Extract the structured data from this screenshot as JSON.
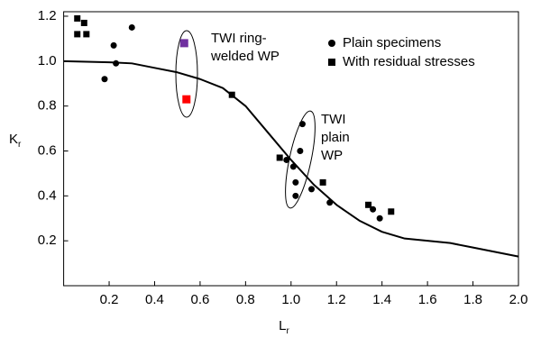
{
  "chart_data": {
    "type": "scatter",
    "x_label": {
      "main": "L",
      "sub": "r"
    },
    "y_label": {
      "main": "K",
      "sub": "r"
    },
    "xlim": [
      0,
      2.0
    ],
    "ylim": [
      0,
      1.22
    ],
    "xticks": [
      0.2,
      0.4,
      0.6,
      0.8,
      {
        "value": 1,
        "label": "1.0"
      },
      1.2,
      1.4,
      1.6,
      1.8,
      {
        "value": 2,
        "label": "2.0"
      }
    ],
    "yticks": [
      0.2,
      0.4,
      0.6,
      0.8,
      {
        "value": 1,
        "label": "1.0"
      },
      1.2
    ],
    "legend_position": "upper right",
    "series": [
      {
        "name": "Plain specimens",
        "marker": "circle",
        "color": "#000000",
        "x": [
          0.3,
          0.22,
          0.23,
          0.18,
          0.98,
          1.05,
          1.04,
          1.01,
          1.02,
          1.02,
          1.09,
          1.17,
          1.36,
          1.39
        ],
        "y": [
          1.15,
          1.07,
          0.99,
          0.92,
          0.56,
          0.72,
          0.6,
          0.53,
          0.46,
          0.4,
          0.43,
          0.37,
          0.34,
          0.3
        ]
      },
      {
        "name": "With residual stresses",
        "marker": "square",
        "color": "#000000",
        "x": [
          0.06,
          0.09,
          0.06,
          0.1,
          0.74,
          0.95,
          1.14,
          1.34,
          1.44
        ],
        "y": [
          1.19,
          1.17,
          1.12,
          1.12,
          0.85,
          0.57,
          0.46,
          0.36,
          0.33
        ]
      }
    ],
    "highlight_points": [
      {
        "x": 0.53,
        "y": 1.08,
        "color": "#7030a0"
      },
      {
        "x": 0.54,
        "y": 0.83,
        "color": "#ff0000"
      }
    ],
    "curve": {
      "color": "#000000",
      "x": [
        0,
        0.2,
        0.3,
        0.4,
        0.5,
        0.6,
        0.7,
        0.8,
        0.9,
        1.0,
        1.1,
        1.2,
        1.3,
        1.4,
        1.5,
        1.6,
        1.7,
        1.8,
        1.9,
        2.0
      ],
      "y": [
        1.0,
        0.995,
        0.99,
        0.97,
        0.95,
        0.92,
        0.88,
        0.8,
        0.68,
        0.56,
        0.45,
        0.36,
        0.29,
        0.24,
        0.21,
        0.2,
        0.19,
        0.17,
        0.15,
        0.13
      ]
    },
    "annotations": [
      {
        "lines": [
          "TWI ring-",
          "welded WP"
        ]
      },
      {
        "lines": [
          "TWI",
          "plain",
          "WP"
        ]
      }
    ]
  }
}
